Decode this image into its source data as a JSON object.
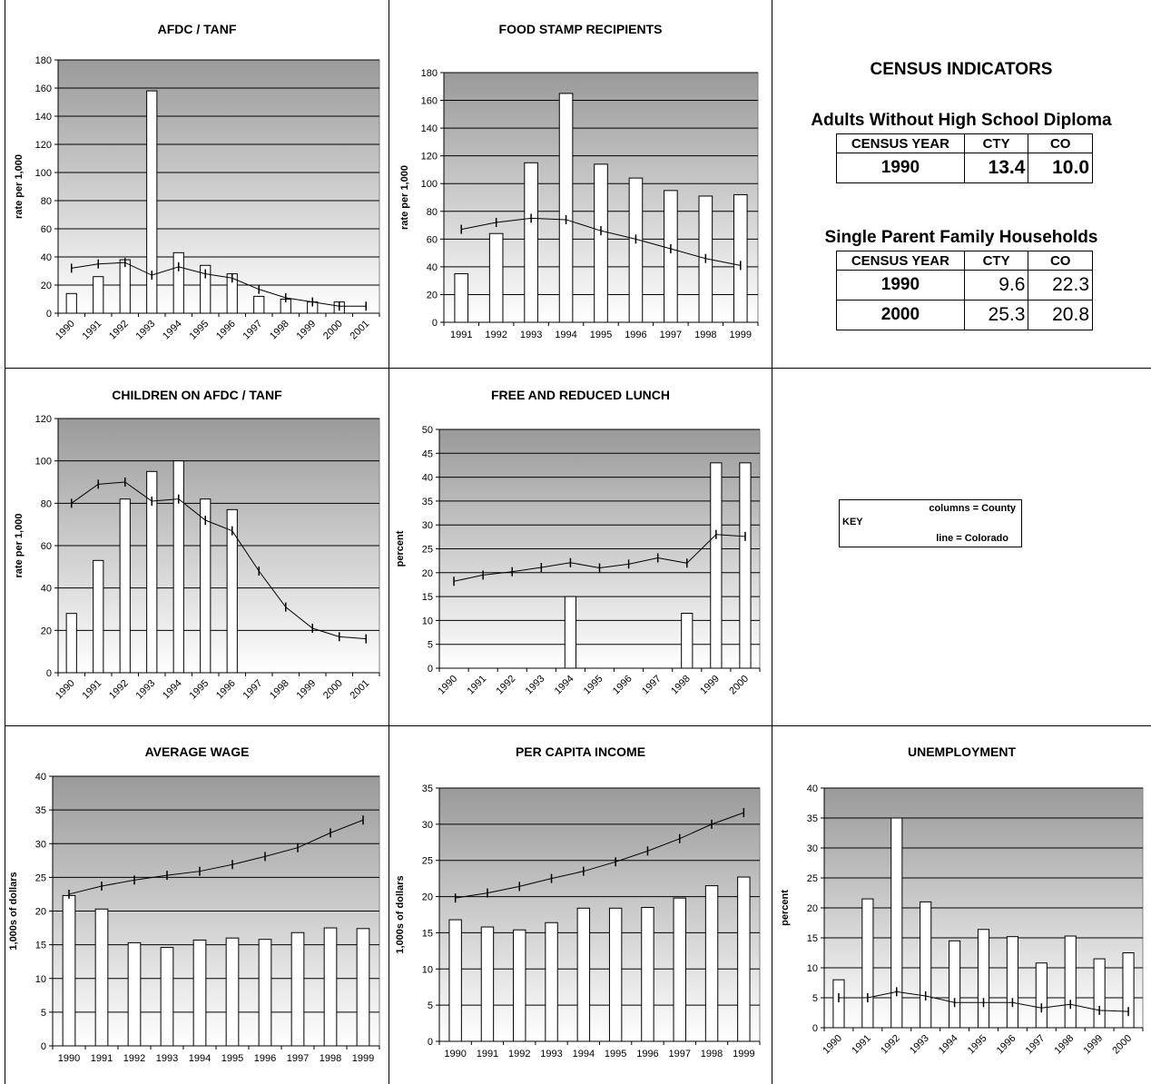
{
  "census": {
    "title": "CENSUS INDICATORS",
    "adults": {
      "title": "Adults Without High School Diploma",
      "headers": [
        "CENSUS YEAR",
        "CTY",
        "CO"
      ],
      "rows": [
        [
          "1990",
          "13.4",
          "10.0"
        ]
      ]
    },
    "single_parent": {
      "title": "Single Parent Family Households",
      "headers": [
        "CENSUS YEAR",
        "CTY",
        "CO"
      ],
      "rows": [
        [
          "1990",
          "9.6",
          "22.3"
        ],
        [
          "2000",
          "25.3",
          "20.8"
        ]
      ]
    }
  },
  "key": {
    "label": "KEY",
    "columns": "columns = County",
    "line": "line = Colorado"
  },
  "chart_data": [
    {
      "id": "afdc",
      "type": "bar",
      "title": "AFDC / TANF",
      "ylabel": "rate per 1,000",
      "ylim": [
        0,
        180
      ],
      "ystep": 20,
      "rotate_ticks": true,
      "categories": [
        "1990",
        "1991",
        "1992",
        "1993",
        "1994",
        "1995",
        "1996",
        "1997",
        "1998",
        "1999",
        "2000",
        "2001"
      ],
      "series": [
        {
          "name": "County",
          "kind": "bar",
          "values": [
            14,
            26,
            38,
            158,
            43,
            34,
            28,
            12,
            10,
            8,
            8,
            null
          ]
        },
        {
          "name": "Colorado",
          "kind": "line",
          "values": [
            32,
            35,
            36,
            27,
            33,
            28,
            25,
            17,
            11,
            8,
            5,
            5
          ]
        }
      ]
    },
    {
      "id": "food",
      "type": "bar",
      "title": "FOOD STAMP RECIPIENTS",
      "ylabel": "rate per 1,000",
      "ylim": [
        0,
        180
      ],
      "ystep": 20,
      "rotate_ticks": false,
      "categories": [
        "1991",
        "1992",
        "1993",
        "1994",
        "1995",
        "1996",
        "1997",
        "1998",
        "1999"
      ],
      "series": [
        {
          "name": "County",
          "kind": "bar",
          "values": [
            35,
            64,
            115,
            165,
            114,
            104,
            95,
            91,
            92
          ]
        },
        {
          "name": "Colorado",
          "kind": "line",
          "values": [
            67,
            72,
            75,
            74,
            66,
            60,
            53,
            46,
            41
          ]
        }
      ]
    },
    {
      "id": "children",
      "type": "bar",
      "title": "CHILDREN ON AFDC / TANF",
      "ylabel": "rate per 1,000",
      "ylim": [
        0,
        120
      ],
      "ystep": 20,
      "rotate_ticks": true,
      "categories": [
        "1990",
        "1991",
        "1992",
        "1993",
        "1994",
        "1995",
        "1996",
        "1997",
        "1998",
        "1999",
        "2000",
        "2001"
      ],
      "series": [
        {
          "name": "County",
          "kind": "bar",
          "values": [
            28,
            53,
            82,
            95,
            100,
            82,
            77,
            null,
            null,
            null,
            null,
            null
          ]
        },
        {
          "name": "Colorado",
          "kind": "line",
          "values": [
            80,
            89,
            90,
            81,
            82,
            72,
            67,
            48,
            31,
            21,
            17,
            16
          ]
        }
      ]
    },
    {
      "id": "lunch",
      "type": "bar",
      "title": "FREE AND REDUCED LUNCH",
      "ylabel": "percent",
      "ylim": [
        0,
        50
      ],
      "ystep": 5,
      "rotate_ticks": true,
      "categories": [
        "1990",
        "1991",
        "1992",
        "1993",
        "1994",
        "1995",
        "1996",
        "1997",
        "1998",
        "1999",
        "2000"
      ],
      "series": [
        {
          "name": "County",
          "kind": "bar",
          "values": [
            null,
            null,
            null,
            null,
            15,
            null,
            null,
            null,
            11.5,
            43,
            43
          ]
        },
        {
          "name": "Colorado",
          "kind": "line",
          "values": [
            18.2,
            19.5,
            20.2,
            21.1,
            22.1,
            21,
            21.8,
            23.1,
            22,
            28,
            27.6
          ]
        }
      ]
    },
    {
      "id": "wage",
      "type": "bar",
      "title": "AVERAGE WAGE",
      "ylabel": "1,000s of dollars",
      "ylim": [
        0,
        40
      ],
      "ystep": 5,
      "rotate_ticks": false,
      "categories": [
        "1990",
        "1991",
        "1992",
        "1993",
        "1994",
        "1995",
        "1996",
        "1997",
        "1998",
        "1999"
      ],
      "series": [
        {
          "name": "County",
          "kind": "bar",
          "values": [
            22.3,
            20.3,
            15.3,
            14.6,
            15.7,
            16,
            15.8,
            16.8,
            17.5,
            17.4
          ]
        },
        {
          "name": "Colorado",
          "kind": "line",
          "values": [
            22.5,
            23.7,
            24.6,
            25.3,
            25.9,
            26.9,
            28.1,
            29.4,
            31.6,
            33.5
          ]
        }
      ]
    },
    {
      "id": "income",
      "type": "bar",
      "title": "PER CAPITA INCOME",
      "ylabel": "1,000s of dollars",
      "ylim": [
        0,
        35
      ],
      "ystep": 5,
      "rotate_ticks": false,
      "categories": [
        "1990",
        "1991",
        "1992",
        "1993",
        "1994",
        "1995",
        "1996",
        "1997",
        "1998",
        "1999"
      ],
      "series": [
        {
          "name": "County",
          "kind": "bar",
          "values": [
            16.8,
            15.8,
            15.4,
            16.4,
            18.4,
            18.4,
            18.5,
            19.8,
            21.5,
            22.7
          ]
        },
        {
          "name": "Colorado",
          "kind": "line",
          "values": [
            19.8,
            20.5,
            21.4,
            22.5,
            23.5,
            24.8,
            26.3,
            28,
            30,
            31.6
          ]
        }
      ]
    },
    {
      "id": "unemp",
      "type": "bar",
      "title": "UNEMPLOYMENT",
      "ylabel": "percent",
      "ylim": [
        0,
        40
      ],
      "ystep": 5,
      "rotate_ticks": true,
      "categories": [
        "1990",
        "1991",
        "1992",
        "1993",
        "1994",
        "1995",
        "1996",
        "1997",
        "1998",
        "1999",
        "2000"
      ],
      "series": [
        {
          "name": "County",
          "kind": "bar",
          "values": [
            8,
            21.5,
            35,
            21,
            14.5,
            16.4,
            15.2,
            10.8,
            15.3,
            11.5,
            12.5
          ]
        },
        {
          "name": "Colorado",
          "kind": "line",
          "values": [
            5,
            5,
            6,
            5.3,
            4.2,
            4.2,
            4.2,
            3.3,
            3.9,
            2.9,
            2.7
          ]
        }
      ]
    }
  ]
}
